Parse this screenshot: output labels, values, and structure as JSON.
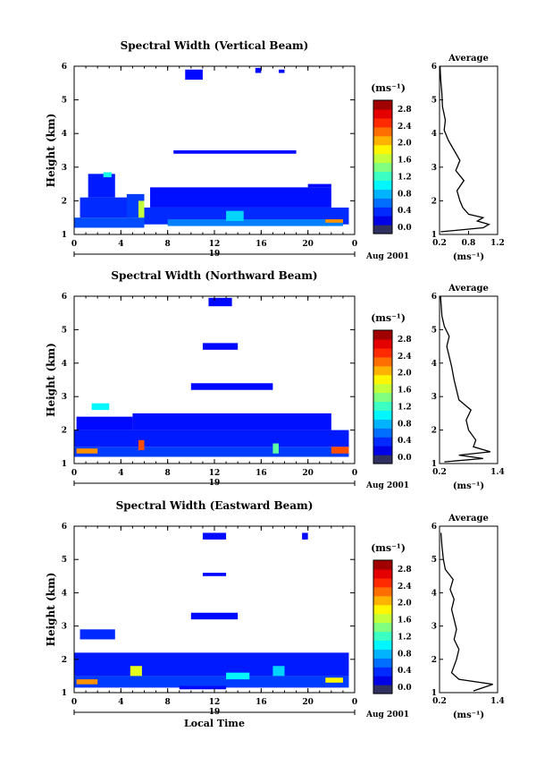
{
  "panels": [
    {
      "title": "Spectral Width (Vertical Beam)",
      "ylabel": "Height (km)",
      "date_label": "Aug 2001",
      "day_label": "19",
      "avg": {
        "title": "Average",
        "unit": "(ms⁻¹)",
        "xticks": [
          "0.2",
          "0.8",
          "1.2"
        ],
        "xlim": [
          0.2,
          1.2
        ],
        "profile": [
          [
            1.08,
            0.22
          ],
          [
            1.2,
            0.95
          ],
          [
            1.3,
            1.05
          ],
          [
            1.4,
            0.85
          ],
          [
            1.5,
            0.95
          ],
          [
            1.6,
            0.7
          ],
          [
            1.8,
            0.6
          ],
          [
            2.0,
            0.55
          ],
          [
            2.3,
            0.5
          ],
          [
            2.6,
            0.62
          ],
          [
            2.9,
            0.48
          ],
          [
            3.2,
            0.55
          ],
          [
            3.5,
            0.45
          ],
          [
            3.8,
            0.35
          ],
          [
            4.1,
            0.28
          ],
          [
            4.4,
            0.3
          ],
          [
            4.8,
            0.25
          ],
          [
            5.2,
            0.24
          ],
          [
            5.6,
            0.22
          ],
          [
            6.0,
            0.21
          ]
        ]
      },
      "colorbar": {
        "unit": "(ms⁻¹)",
        "ticks": [
          "2.8",
          "2.4",
          "2.0",
          "1.6",
          "1.2",
          "0.8",
          "0.4",
          "0.0"
        ]
      },
      "blocks": [
        [
          0,
          6,
          1.2,
          1.5,
          0.6
        ],
        [
          0.5,
          5,
          1.5,
          2.1,
          0.5
        ],
        [
          1.2,
          3.5,
          2.1,
          2.8,
          0.45
        ],
        [
          2.5,
          3.2,
          2.7,
          2.85,
          1.2
        ],
        [
          4.5,
          6,
          1.5,
          2.2,
          0.55
        ],
        [
          5.5,
          6,
          1.5,
          2.0,
          1.7
        ],
        [
          6,
          23.5,
          1.3,
          1.8,
          0.5
        ],
        [
          6.5,
          22,
          1.8,
          2.4,
          0.42
        ],
        [
          8,
          23,
          1.25,
          1.45,
          0.75
        ],
        [
          20,
          22,
          2.4,
          2.5,
          0.4
        ],
        [
          21.5,
          23,
          1.35,
          1.45,
          2.2
        ],
        [
          13,
          14.5,
          1.4,
          1.7,
          1.0
        ],
        [
          8.5,
          19,
          3.4,
          3.5,
          0.4
        ],
        [
          9.5,
          11,
          5.6,
          5.9,
          0.4
        ],
        [
          15.5,
          16,
          5.8,
          5.95,
          0.4
        ],
        [
          17.5,
          18,
          5.8,
          5.9,
          0.4
        ]
      ]
    },
    {
      "title": "Spectral Width (Northward Beam)",
      "ylabel": "Height (km)",
      "date_label": "Aug 2001",
      "day_label": "19",
      "avg": {
        "title": "Average",
        "unit": "(ms⁻¹)",
        "xticks": [
          "0.2",
          "1.4"
        ],
        "xlim": [
          0.2,
          1.4
        ],
        "profile": [
          [
            1.05,
            0.3
          ],
          [
            1.15,
            1.1
          ],
          [
            1.25,
            0.6
          ],
          [
            1.35,
            1.25
          ],
          [
            1.5,
            0.9
          ],
          [
            1.7,
            0.95
          ],
          [
            2.0,
            0.8
          ],
          [
            2.3,
            0.75
          ],
          [
            2.6,
            0.85
          ],
          [
            2.9,
            0.6
          ],
          [
            3.2,
            0.55
          ],
          [
            3.5,
            0.5
          ],
          [
            3.9,
            0.45
          ],
          [
            4.2,
            0.4
          ],
          [
            4.5,
            0.35
          ],
          [
            4.8,
            0.4
          ],
          [
            5.1,
            0.3
          ],
          [
            5.4,
            0.25
          ],
          [
            6.0,
            0.22
          ]
        ]
      },
      "colorbar": {
        "unit": "(ms⁻¹)",
        "ticks": [
          "2.8",
          "2.4",
          "2.0",
          "1.6",
          "1.2",
          "0.8",
          "0.4",
          "0.0"
        ]
      },
      "blocks": [
        [
          0,
          23.5,
          1.2,
          1.5,
          0.55
        ],
        [
          0.2,
          2,
          1.3,
          1.45,
          2.2
        ],
        [
          0,
          23.5,
          1.5,
          2.0,
          0.45
        ],
        [
          0.2,
          5,
          2.0,
          2.4,
          0.4
        ],
        [
          1.5,
          3,
          2.6,
          2.8,
          1.1
        ],
        [
          5.5,
          6,
          1.4,
          1.7,
          2.4
        ],
        [
          5,
          22,
          2.0,
          2.5,
          0.42
        ],
        [
          22,
          23.5,
          1.3,
          1.5,
          2.4
        ],
        [
          17,
          17.5,
          1.3,
          1.6,
          1.4
        ],
        [
          10,
          17,
          3.2,
          3.4,
          0.4
        ],
        [
          11,
          14,
          4.4,
          4.6,
          0.4
        ],
        [
          11.5,
          13.5,
          5.7,
          5.95,
          0.4
        ]
      ]
    },
    {
      "title": "Spectral Width (Eastward Beam)",
      "ylabel": "Height (km)",
      "xlabel": "Local Time",
      "date_label": "Aug 2001",
      "day_label": "19",
      "avg": {
        "title": "Average",
        "unit": "(ms⁻¹)",
        "xticks": [
          "0.2",
          "1.4"
        ],
        "xlim": [
          0.2,
          1.4
        ],
        "profile": [
          [
            1.05,
            0.9
          ],
          [
            1.25,
            1.3
          ],
          [
            1.4,
            0.6
          ],
          [
            1.6,
            0.45
          ],
          [
            1.8,
            0.5
          ],
          [
            2.0,
            0.55
          ],
          [
            2.3,
            0.6
          ],
          [
            2.6,
            0.5
          ],
          [
            2.9,
            0.55
          ],
          [
            3.2,
            0.5
          ],
          [
            3.5,
            0.45
          ],
          [
            3.8,
            0.5
          ],
          [
            4.1,
            0.42
          ],
          [
            4.4,
            0.48
          ],
          [
            4.7,
            0.32
          ],
          [
            5.0,
            0.28
          ],
          [
            5.4,
            0.25
          ],
          [
            5.8,
            0.23
          ]
        ]
      },
      "colorbar": {
        "unit": "(ms⁻¹)",
        "ticks": [
          "2.8",
          "2.4",
          "2.0",
          "1.6",
          "1.2",
          "0.8",
          "0.4",
          "0.0"
        ]
      },
      "blocks": [
        [
          0,
          23.5,
          1.15,
          1.5,
          0.55
        ],
        [
          0.2,
          2,
          1.25,
          1.4,
          2.2
        ],
        [
          0,
          23.5,
          1.5,
          2.2,
          0.45
        ],
        [
          0.5,
          3.5,
          2.6,
          2.9,
          0.5
        ],
        [
          4.8,
          5.8,
          1.5,
          1.8,
          1.8
        ],
        [
          13,
          15,
          1.4,
          1.6,
          1.1
        ],
        [
          17,
          18,
          1.5,
          1.8,
          1.0
        ],
        [
          21.5,
          23,
          1.3,
          1.45,
          1.9
        ],
        [
          9,
          13,
          1.1,
          1.2,
          0.4
        ],
        [
          10,
          14,
          3.2,
          3.4,
          0.4
        ],
        [
          11,
          13,
          4.5,
          4.6,
          0.4
        ],
        [
          11,
          13,
          5.6,
          5.8,
          0.4
        ],
        [
          19.5,
          20,
          5.6,
          5.8,
          0.4
        ]
      ]
    }
  ],
  "chart_data": [
    {
      "type": "heatmap",
      "title": "Spectral Width (Vertical Beam)",
      "xlabel": "",
      "ylabel": "Height (km)",
      "x_ticks": [
        "0",
        "4",
        "8",
        "12",
        "16",
        "20",
        "0"
      ],
      "y_ticks": [
        "1",
        "2",
        "3",
        "4",
        "5",
        "6"
      ],
      "xlim": [
        0,
        24
      ],
      "ylim": [
        1,
        6
      ],
      "colorbar_range": [
        0.0,
        3.0
      ],
      "colorbar_unit": "ms⁻¹"
    },
    {
      "type": "line",
      "title": "Average",
      "xlim": [
        0.2,
        1.2
      ],
      "ylim": [
        1,
        6
      ]
    },
    {
      "type": "heatmap",
      "title": "Spectral Width (Northward Beam)",
      "xlabel": "",
      "ylabel": "Height (km)",
      "x_ticks": [
        "0",
        "4",
        "8",
        "12",
        "16",
        "20",
        "0"
      ],
      "y_ticks": [
        "1",
        "2",
        "3",
        "4",
        "5",
        "6"
      ],
      "xlim": [
        0,
        24
      ],
      "ylim": [
        1,
        6
      ],
      "colorbar_range": [
        0.0,
        3.0
      ],
      "colorbar_unit": "ms⁻¹"
    },
    {
      "type": "line",
      "title": "Average",
      "xlim": [
        0.2,
        1.4
      ],
      "ylim": [
        1,
        6
      ]
    },
    {
      "type": "heatmap",
      "title": "Spectral Width (Eastward Beam)",
      "xlabel": "Local Time",
      "ylabel": "Height (km)",
      "x_ticks": [
        "0",
        "4",
        "8",
        "12",
        "16",
        "20",
        "0"
      ],
      "y_ticks": [
        "1",
        "2",
        "3",
        "4",
        "5",
        "6"
      ],
      "xlim": [
        0,
        24
      ],
      "ylim": [
        1,
        6
      ],
      "colorbar_range": [
        0.0,
        3.0
      ],
      "colorbar_unit": "ms⁻¹"
    },
    {
      "type": "line",
      "title": "Average",
      "xlim": [
        0.2,
        1.4
      ],
      "ylim": [
        1,
        6
      ]
    }
  ],
  "x_ticks": [
    "0",
    "4",
    "8",
    "12",
    "16",
    "20",
    "0"
  ],
  "y_ticks": [
    "1",
    "2",
    "3",
    "4",
    "5",
    "6"
  ]
}
